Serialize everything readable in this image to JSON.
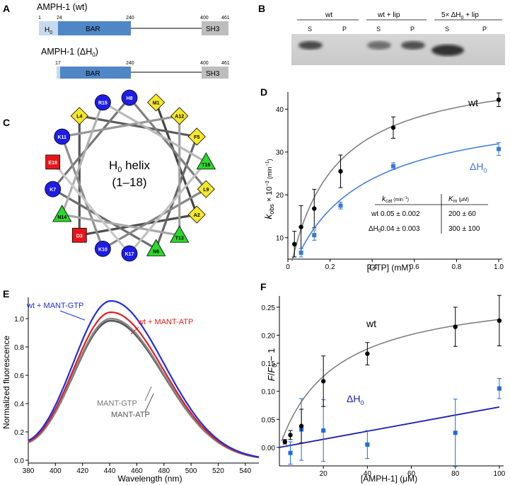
{
  "panels": {
    "A": "A",
    "B": "B",
    "C": "C",
    "D": "D",
    "E": "E",
    "F": "F"
  },
  "panel_a": {
    "wt_title_main": "AMPH-1 (wt)",
    "dh_title_main": "AMPH-1 (",
    "dh_title_sym": "ΔH",
    "dh_title_sub": "0",
    "dh_title_end": ")",
    "wt_nums": [
      "1",
      "24",
      "240",
      "400",
      "461"
    ],
    "dh_nums": [
      "17",
      "240",
      "400",
      "461"
    ],
    "h0_label": "H",
    "h0_sub": "0",
    "bar_label": "BAR",
    "sh3_label": "SH3",
    "colors": {
      "h0": "#c6d9ef",
      "bar": "#4f86c6",
      "sh3": "#bdbdbd"
    }
  },
  "panel_b": {
    "groups": [
      {
        "label": "wt",
        "lanes": [
          "S",
          "P"
        ]
      },
      {
        "label": "wt + lip",
        "lanes": [
          "S",
          "P"
        ]
      },
      {
        "label_pre": "5× ΔH",
        "label_sub": "0",
        "label_post": " + lip",
        "lanes": [
          "S",
          "P"
        ]
      }
    ],
    "band_intensity": [
      0.85,
      0.05,
      0.6,
      0.8,
      1.0,
      0.05
    ]
  },
  "panel_c": {
    "center_label": "H",
    "center_sub": "0",
    "center_label2": " helix",
    "center_range": "(1–18)",
    "residues": [
      {
        "name": "M1",
        "shape": "diamond",
        "color": "#f5e72a"
      },
      {
        "name": "A12",
        "shape": "diamond",
        "color": "#f5e72a"
      },
      {
        "name": "F5",
        "shape": "diamond",
        "color": "#f5e72a"
      },
      {
        "name": "T16",
        "shape": "triangle",
        "color": "#2bd72b"
      },
      {
        "name": "L9",
        "shape": "diamond",
        "color": "#f5e72a"
      },
      {
        "name": "A2",
        "shape": "diamond",
        "color": "#f5e72a"
      },
      {
        "name": "T13",
        "shape": "triangle",
        "color": "#2bd72b"
      },
      {
        "name": "N6",
        "shape": "triangle",
        "color": "#2bd72b"
      },
      {
        "name": "K17",
        "shape": "circle",
        "color": "#1d1de6"
      },
      {
        "name": "K10",
        "shape": "circle",
        "color": "#1d1de6"
      },
      {
        "name": "D3",
        "shape": "square",
        "color": "#e8141a"
      },
      {
        "name": "N14",
        "shape": "triangle",
        "color": "#2bd72b"
      },
      {
        "name": "K7",
        "shape": "circle",
        "color": "#1d1de6"
      },
      {
        "name": "E18",
        "shape": "square",
        "color": "#e8141a"
      },
      {
        "name": "K11",
        "shape": "circle",
        "color": "#1d1de6"
      },
      {
        "name": "L4",
        "shape": "diamond",
        "color": "#f5e72a"
      },
      {
        "name": "R15",
        "shape": "circle",
        "color": "#1d1de6"
      },
      {
        "name": "H8",
        "shape": "circle",
        "color": "#1d1de6"
      }
    ]
  },
  "chart_data": [
    {
      "id": "D",
      "type": "scatter",
      "xlabel": "[GTP] (mM)",
      "ylabel_main": "k",
      "ylabel_sub": "obs",
      "ylabel_rest": " × 10",
      "ylabel_exp": "−3",
      "ylabel_unit": " (min",
      "ylabel_unit_exp": "−1",
      "ylabel_close": ")",
      "xlim": [
        0,
        1.0
      ],
      "ylim": [
        5,
        44
      ],
      "xticks": [
        "0",
        "0.2",
        "0.4",
        "0.6",
        "0.8",
        "1.0"
      ],
      "yticks": [
        "10",
        "20",
        "30",
        "40"
      ],
      "series": [
        {
          "name": "wt",
          "color": "#000000",
          "fit_color": "#7a7a7a",
          "x": [
            0.031,
            0.0625,
            0.125,
            0.25,
            0.5,
            1.0
          ],
          "y": [
            8.5,
            12.5,
            16.8,
            25.5,
            35.7,
            42.2
          ],
          "err": [
            3.0,
            5.0,
            4.5,
            3.8,
            2.5,
            1.6
          ],
          "fit_vmax": 50.5,
          "fit_km": 0.2
        },
        {
          "name_sym": "ΔH",
          "name_sub": "0",
          "color": "#3b78db",
          "fit_color": "#3b78db",
          "x": [
            0.0625,
            0.125,
            0.25,
            0.5,
            1.0
          ],
          "y": [
            6.5,
            10.6,
            17.5,
            26.7,
            30.7
          ],
          "err": [
            1.0,
            1.2,
            0.8,
            0.8,
            1.5
          ],
          "fit_vmax": 41.5,
          "fit_km": 0.3,
          "fit_x0": 0.06
        }
      ],
      "inset": {
        "h1_pre": "k",
        "h1_sub": "cat",
        "h1_unit": " (min",
        "h1_exp": "−1",
        "h1_close": ")",
        "h2_pre": "K",
        "h2_sub": "m",
        "h2_unit": " (μM)",
        "rows": [
          {
            "label": "wt",
            "kcat": "0.05 ± 0.002",
            "km": "200 ± 60"
          },
          {
            "label_sym": "ΔH",
            "label_sub": "0",
            "kcat": "0.04 ± 0.003",
            "km": "300 ± 100"
          }
        ]
      }
    },
    {
      "id": "E",
      "type": "line",
      "xlabel": "Wavelength (nm)",
      "ylabel": "Normalized fluorescence",
      "xlim": [
        380,
        550
      ],
      "ylim": [
        -0.02,
        1.15
      ],
      "xticks": [
        "380",
        "400",
        "420",
        "440",
        "460",
        "480",
        "500",
        "520",
        "540"
      ],
      "yticks": [
        "0.0",
        "0.2",
        "0.4",
        "0.6",
        "0.8",
        "1.0"
      ],
      "series": [
        {
          "name": "wt + MANT-GTP",
          "color": "#1f2ee0",
          "peak": 1.125
        },
        {
          "name": "wt + MANT-ATP",
          "color": "#e02020",
          "peak": 1.045
        },
        {
          "name": "MANT-GTP",
          "color": "#888888",
          "peak": 1.0
        },
        {
          "name": "MANT-ATP",
          "color": "#555555",
          "peak": 0.985
        }
      ],
      "peak_nm": 441
    },
    {
      "id": "F",
      "type": "scatter",
      "xlabel": "[AMPH-1] (μM)",
      "ylabel_f": "F",
      "ylabel_slash": "/",
      "ylabel_f0": "F",
      "ylabel_sub": "0",
      "ylabel_tail": " − 1",
      "xlim": [
        0,
        101
      ],
      "ylim": [
        -0.033,
        0.27
      ],
      "xticks": [
        "20",
        "40",
        "60",
        "80",
        "100"
      ],
      "yticks": [
        "0.00",
        "0.05",
        "0.10",
        "0.15",
        "0.20",
        "0.25"
      ],
      "series": [
        {
          "name": "wt",
          "color": "#000000",
          "fit_color": "#7a7a7a",
          "x": [
            2.5,
            5,
            10,
            20,
            40,
            80,
            100
          ],
          "y": [
            0.01,
            0.022,
            0.038,
            0.118,
            0.167,
            0.215,
            0.226
          ],
          "err": [
            0.004,
            0.008,
            0.03,
            0.045,
            0.02,
            0.035,
            0.045
          ],
          "fit_bmax": 0.285,
          "fit_kd": 25
        },
        {
          "name_sym": "ΔH",
          "name_sub": "0",
          "color": "#2169dd",
          "fit_color": "#1a1ab3",
          "x": [
            5,
            10,
            20,
            40,
            80,
            100
          ],
          "y": [
            -0.01,
            0.032,
            0.03,
            0.005,
            0.026,
            0.105
          ],
          "err": [
            0.02,
            0.055,
            0.055,
            0.025,
            0.06,
            0.018
          ],
          "fit_slope": 0.00072,
          "fit_intercept": 0.0
        }
      ]
    }
  ]
}
